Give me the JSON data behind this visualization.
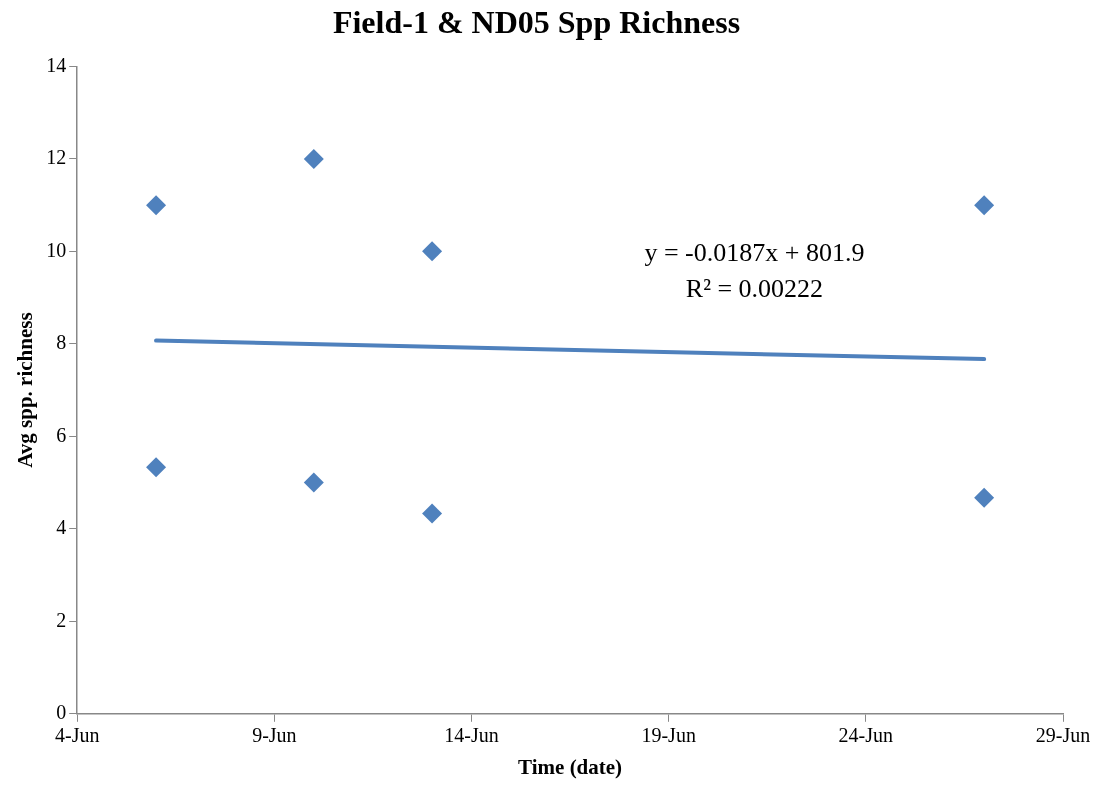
{
  "chart_data": {
    "type": "scatter",
    "title": "Field-1 & ND05 Spp Richness",
    "xlabel": "Time (date)",
    "ylabel": "Avg spp. richness",
    "x": [
      "--06-06",
      "--06-10",
      "--06-13",
      "--06-27",
      "--06-06",
      "--06-10",
      "--06-13",
      "--06-27"
    ],
    "series": [
      {
        "type": "scatter",
        "color": "#4f81bd",
        "values": [
          11,
          12,
          10,
          11,
          5.33,
          5,
          4.33,
          4.67
        ]
      },
      {
        "type": "line",
        "color": "#4f81bd",
        "x": [
          "--06-06",
          "--06-27"
        ],
        "values": [
          8.07,
          7.67
        ],
        "marker": "none"
      }
    ],
    "xlim": [
      "--06-04",
      "--06-29"
    ],
    "xticks": [
      {
        "value": "--06-04",
        "label": "4-Jun"
      },
      {
        "value": "--06-09",
        "label": "9-Jun"
      },
      {
        "value": "--06-14",
        "label": "14-Jun"
      },
      {
        "value": "--06-19",
        "label": "19-Jun"
      },
      {
        "value": "--06-24",
        "label": "24-Jun"
      },
      {
        "value": "--06-29",
        "label": "29-Jun"
      }
    ],
    "ylim": [
      0,
      14
    ],
    "yticks": [
      0,
      2,
      4,
      6,
      8,
      10,
      12,
      14
    ],
    "annotations": [
      "y = -0.0187x + 801.9",
      "R² = 0.00222"
    ],
    "marker": "diamond",
    "grid": false,
    "legend": false
  }
}
